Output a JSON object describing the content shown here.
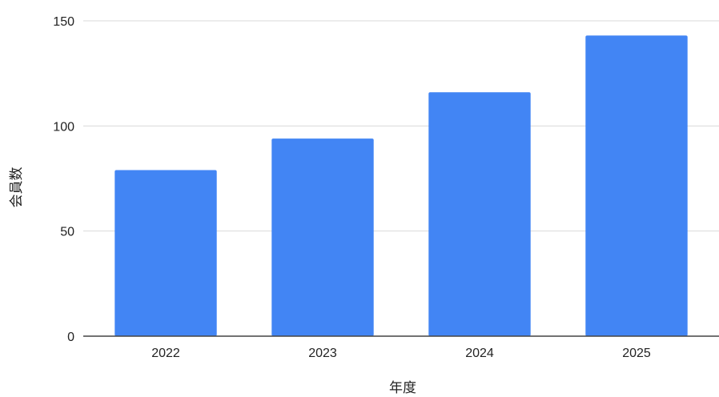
{
  "chart_data": {
    "type": "bar",
    "title": "",
    "xlabel": "年度",
    "ylabel": "会員数",
    "categories": [
      "2022",
      "2023",
      "2024",
      "2025"
    ],
    "series": [
      {
        "values": [
          79,
          94,
          116,
          143
        ]
      }
    ],
    "ylim": [
      0,
      150
    ],
    "yticks": [
      0,
      50,
      100,
      150
    ],
    "grid": true,
    "legend": "none",
    "colors": {
      "bar": "#4285f4",
      "grid": "#d9d9d9",
      "axis": "#444444"
    }
  }
}
